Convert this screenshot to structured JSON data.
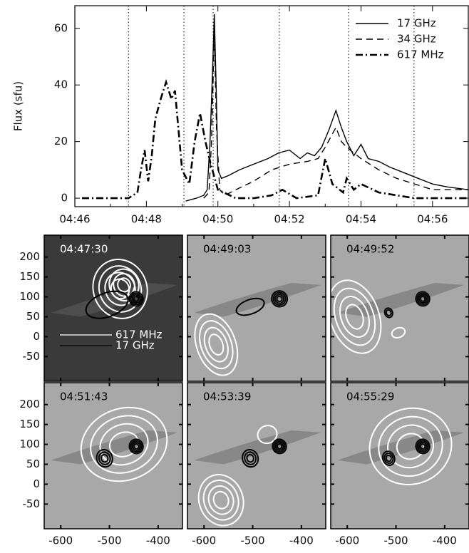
{
  "chart_data": [
    {
      "type": "line",
      "ylabel": "Flux (sfu)",
      "xlim": [
        46,
        57
      ],
      "xticks": [
        {
          "value": 46,
          "label": "04:46"
        },
        {
          "value": 48,
          "label": "04:48"
        },
        {
          "value": 50,
          "label": "04:50"
        },
        {
          "value": 52,
          "label": "04:52"
        },
        {
          "value": 54,
          "label": "04:54"
        },
        {
          "value": 56,
          "label": "04:56"
        }
      ],
      "ylim": [
        -3,
        68
      ],
      "yticks": [
        0,
        20,
        40,
        60
      ],
      "markers": [
        47.5,
        49.05,
        49.867,
        51.717,
        53.65,
        55.483
      ],
      "legend": "upper right",
      "series": [
        {
          "name": "17 GHz",
          "color": "#000000",
          "line_style": "solid",
          "x": [
            49.1,
            49.4,
            49.6,
            49.7,
            49.78,
            49.85,
            49.9,
            49.95,
            50.0,
            50.1,
            50.3,
            50.6,
            51.0,
            51.4,
            51.7,
            52.0,
            52.3,
            52.5,
            52.7,
            52.9,
            53.1,
            53.3,
            53.45,
            53.6,
            53.8,
            54.0,
            54.2,
            54.5,
            54.8,
            55.2,
            55.6,
            56.0,
            56.4,
            57.0
          ],
          "values": [
            -1,
            0,
            1,
            3,
            20,
            45,
            65,
            40,
            10,
            7,
            8,
            10,
            12,
            14,
            16,
            17,
            14,
            16,
            15,
            18,
            24,
            31,
            25,
            20,
            15,
            19,
            14,
            13,
            11,
            9,
            7,
            5,
            4,
            3
          ]
        },
        {
          "name": "34 GHz",
          "color": "#000000",
          "line_style": "dashed",
          "x": [
            49.6,
            49.75,
            49.82,
            49.9,
            49.96,
            50.05,
            50.2,
            50.5,
            51.0,
            51.5,
            52.0,
            52.5,
            52.8,
            53.0,
            53.3,
            53.45,
            53.6,
            54.0,
            54.5,
            55.0,
            55.5,
            56.0,
            57.0
          ],
          "values": [
            0,
            2,
            20,
            58,
            25,
            3,
            1,
            3,
            6,
            10,
            12,
            13,
            14,
            18,
            25,
            20,
            18,
            14,
            10,
            7,
            5,
            3,
            3
          ]
        },
        {
          "name": "617 MHz",
          "color": "#000000",
          "line_style": "dashdot",
          "x": [
            46.2,
            47.0,
            47.5,
            47.75,
            47.85,
            47.95,
            48.05,
            48.15,
            48.25,
            48.4,
            48.55,
            48.7,
            48.8,
            49.0,
            49.2,
            49.35,
            49.5,
            49.65,
            49.8,
            50.0,
            50.5,
            51.0,
            51.5,
            51.8,
            52.2,
            52.8,
            53.0,
            53.2,
            53.5,
            53.6,
            53.8,
            54.0,
            54.5,
            55.5,
            56.2,
            57.0
          ],
          "values": [
            0,
            0,
            0,
            2,
            10,
            17,
            6,
            15,
            28,
            35,
            41,
            35,
            38,
            10,
            5,
            20,
            30,
            20,
            12,
            3,
            0,
            0,
            1,
            3,
            0,
            1,
            14,
            5,
            2,
            7,
            3,
            5,
            2,
            0,
            0,
            0
          ]
        }
      ]
    },
    {
      "type": "image",
      "panels": [
        "04:47:30",
        "04:49:03",
        "04:49:52",
        "04:51:43",
        "04:53:39",
        "04:55:29"
      ],
      "xlim": [
        -634,
        -350
      ],
      "xticks": [
        -600,
        -500,
        -400
      ],
      "ylim": [
        -112,
        255
      ],
      "yticks": [
        -50,
        0,
        50,
        100,
        150,
        200
      ],
      "series": [
        {
          "name": "617 MHz",
          "color": "#ffffff"
        },
        {
          "name": "17 GHz",
          "color": "#000000"
        }
      ]
    }
  ]
}
